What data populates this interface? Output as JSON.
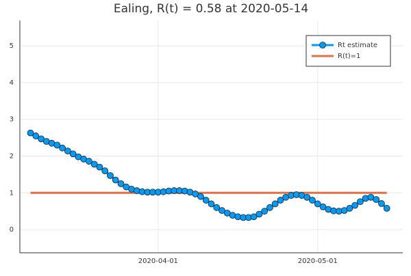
{
  "chart_data": {
    "type": "line",
    "title": "Ealing, R(t) = 0.58 at 2020-05-14",
    "x": [
      "2020-03-08",
      "2020-03-09",
      "2020-03-10",
      "2020-03-11",
      "2020-03-12",
      "2020-03-13",
      "2020-03-14",
      "2020-03-15",
      "2020-03-16",
      "2020-03-17",
      "2020-03-18",
      "2020-03-19",
      "2020-03-20",
      "2020-03-21",
      "2020-03-22",
      "2020-03-23",
      "2020-03-24",
      "2020-03-25",
      "2020-03-26",
      "2020-03-27",
      "2020-03-28",
      "2020-03-29",
      "2020-03-30",
      "2020-03-31",
      "2020-04-01",
      "2020-04-02",
      "2020-04-03",
      "2020-04-04",
      "2020-04-05",
      "2020-04-06",
      "2020-04-07",
      "2020-04-08",
      "2020-04-09",
      "2020-04-10",
      "2020-04-11",
      "2020-04-12",
      "2020-04-13",
      "2020-04-14",
      "2020-04-15",
      "2020-04-16",
      "2020-04-17",
      "2020-04-18",
      "2020-04-19",
      "2020-04-20",
      "2020-04-21",
      "2020-04-22",
      "2020-04-23",
      "2020-04-24",
      "2020-04-25",
      "2020-04-26",
      "2020-04-27",
      "2020-04-28",
      "2020-04-29",
      "2020-04-30",
      "2020-05-01",
      "2020-05-02",
      "2020-05-03",
      "2020-05-04",
      "2020-05-05",
      "2020-05-06",
      "2020-05-07",
      "2020-05-08",
      "2020-05-09",
      "2020-05-10",
      "2020-05-11",
      "2020-05-12",
      "2020-05-13",
      "2020-05-14"
    ],
    "series": [
      {
        "name": "Rt estimate",
        "color": "#009af9",
        "markers": true,
        "values": [
          2.63,
          2.55,
          2.47,
          2.4,
          2.35,
          2.3,
          2.22,
          2.14,
          2.06,
          1.98,
          1.92,
          1.86,
          1.78,
          1.7,
          1.6,
          1.47,
          1.35,
          1.25,
          1.16,
          1.1,
          1.06,
          1.03,
          1.02,
          1.02,
          1.02,
          1.03,
          1.05,
          1.06,
          1.06,
          1.05,
          1.02,
          0.97,
          0.9,
          0.8,
          0.7,
          0.6,
          0.52,
          0.45,
          0.39,
          0.35,
          0.33,
          0.33,
          0.35,
          0.42,
          0.5,
          0.6,
          0.7,
          0.8,
          0.88,
          0.93,
          0.95,
          0.93,
          0.88,
          0.8,
          0.7,
          0.62,
          0.55,
          0.51,
          0.5,
          0.52,
          0.58,
          0.66,
          0.76,
          0.85,
          0.88,
          0.82,
          0.71,
          0.58
        ]
      },
      {
        "name": "R(t)=1",
        "color": "#e26f46",
        "markers": false,
        "x": [
          "2020-03-08",
          "2020-05-14"
        ],
        "values": [
          1,
          1
        ]
      }
    ],
    "xlim": [
      "2020-03-06",
      "2020-05-17"
    ],
    "xticks": [
      "2020-04-01",
      "2020-05-01"
    ],
    "ylim": [
      -0.63,
      5.69
    ],
    "yticks": [
      0,
      1,
      2,
      3,
      4,
      5
    ],
    "grid": true,
    "legend": "top-right"
  }
}
